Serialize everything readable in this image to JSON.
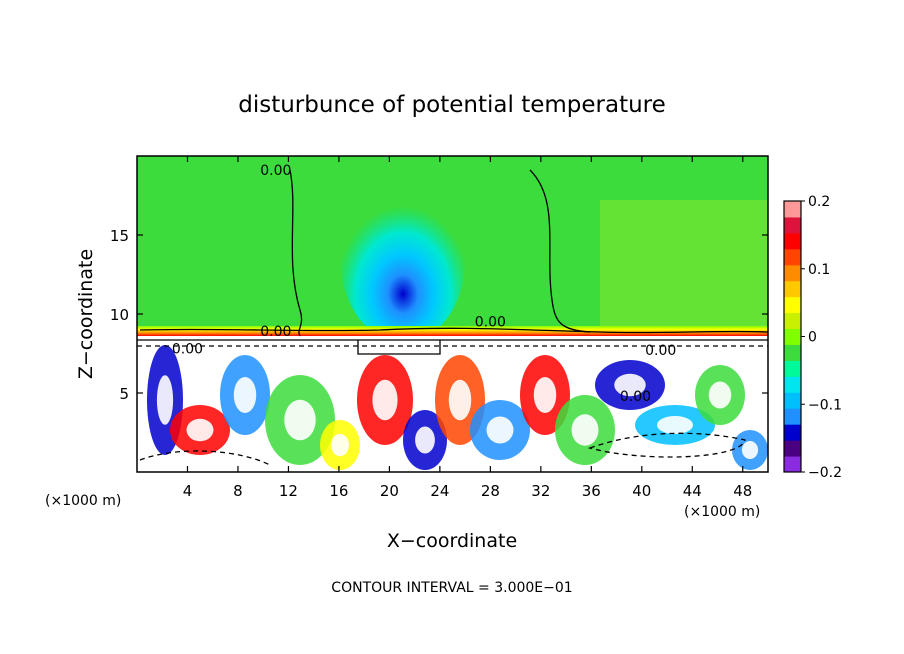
{
  "chart_data": {
    "type": "heatmap",
    "title": "disturbunce of potential temperature",
    "xlabel": "X−coordinate",
    "ylabel": "Z−coordinate",
    "x_unit": "(×1000 m)",
    "z_unit": "(×1000 m)",
    "x_ticks": [
      4,
      8,
      12,
      16,
      20,
      24,
      28,
      32,
      36,
      40,
      44,
      48
    ],
    "z_ticks": [
      5,
      10,
      15
    ],
    "xlim": [
      0,
      50
    ],
    "zlim": [
      0,
      20
    ],
    "colorbar": {
      "ticks": [
        0.2,
        0.1,
        0,
        -0.1,
        -0.2
      ],
      "tick_labels": [
        "0.2",
        "0.1",
        "0",
        "−0.1",
        "−0.2"
      ],
      "range": [
        -0.2,
        0.2
      ],
      "colors": [
        "#8a2be2",
        "#4b0082",
        "#0000cd",
        "#1e90ff",
        "#00bfff",
        "#00e5ee",
        "#00fa9a",
        "#3cdc3c",
        "#7fff00",
        "#c8f000",
        "#ffff00",
        "#ffc800",
        "#ff8c00",
        "#ff4500",
        "#ff0000",
        "#dc143c",
        "#ff9999"
      ]
    },
    "contour_labels": [
      {
        "text": "0.00",
        "x": 11,
        "z": 18.8
      },
      {
        "text": "0.00",
        "x": 28,
        "z": 9.2
      },
      {
        "text": "0.00",
        "x": 41.5,
        "z": 7.4
      },
      {
        "text": "0.00",
        "x": 39.5,
        "z": 4.5
      },
      {
        "text": "0.00",
        "x": 11,
        "z": 8.6
      },
      {
        "text": "0.00",
        "x": 4,
        "z": 7.5
      }
    ],
    "fields": {
      "upper_background": 0.02,
      "central_cold_anomaly": {
        "x": 20.5,
        "z": 10,
        "min": -0.12
      },
      "tropopause_z": 9,
      "lower_layer_top_z": 8.3
    },
    "footer": "CONTOUR INTERVAL = 3.000E−01"
  }
}
